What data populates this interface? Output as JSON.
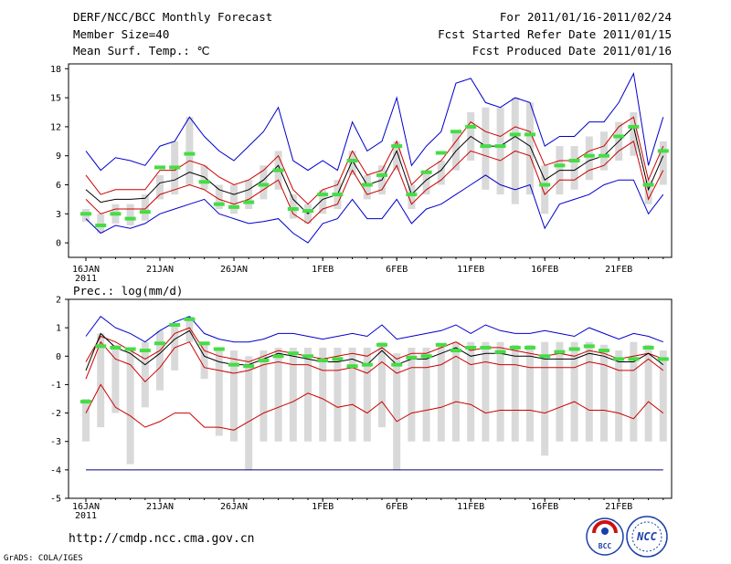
{
  "header": {
    "title": "DERF/NCC/BCC Monthly Forecast",
    "member_size": "Member Size=40",
    "variable": "Mean Surf. Temp.: ℃",
    "forecast_period": "For 2011/01/16-2011/02/24",
    "fcst_started": "Fcst Started Refer Date 2011/01/15",
    "fcst_produced": "Fcst Produced Date 2011/01/16"
  },
  "footer": {
    "url": "http://cmdp.ncc.cma.gov.cn",
    "grads_credit": "GrADS: COLA/IGES",
    "logo_bcc_text": "BCC",
    "logo_ncc_text": "NCC"
  },
  "x_ticks": [
    {
      "day": 0,
      "label": "16JAN",
      "sub": "2011"
    },
    {
      "day": 5,
      "label": "21JAN",
      "sub": ""
    },
    {
      "day": 10,
      "label": "26JAN",
      "sub": ""
    },
    {
      "day": 16,
      "label": "1FEB",
      "sub": ""
    },
    {
      "day": 21,
      "label": "6FEB",
      "sub": ""
    },
    {
      "day": 26,
      "label": "11FEB",
      "sub": ""
    },
    {
      "day": 31,
      "label": "16FEB",
      "sub": ""
    },
    {
      "day": 36,
      "label": "21FEB",
      "sub": ""
    }
  ],
  "chart_data": [
    {
      "type": "line",
      "title": "Mean Surf. Temp.: ℃",
      "xlabel": "",
      "ylabel": "",
      "x_days": [
        0,
        1,
        2,
        3,
        4,
        5,
        6,
        7,
        8,
        9,
        10,
        11,
        12,
        13,
        14,
        15,
        16,
        17,
        18,
        19,
        20,
        21,
        22,
        23,
        24,
        25,
        26,
        27,
        28,
        29,
        30,
        31,
        32,
        33,
        34,
        35,
        36,
        37,
        38,
        39
      ],
      "ylim": [
        -1.5,
        18.5
      ],
      "yticks": [
        0,
        3,
        6,
        9,
        12,
        15,
        18
      ],
      "series": [
        {
          "name": "ensemble-max",
          "color": "#0000cc",
          "values": [
            9.5,
            7.5,
            8.8,
            8.5,
            8.0,
            10.0,
            10.5,
            13.0,
            11.0,
            9.5,
            8.5,
            10.0,
            11.5,
            14.0,
            8.5,
            7.5,
            8.5,
            7.5,
            12.5,
            9.5,
            10.5,
            15.0,
            8.0,
            10.0,
            11.5,
            16.5,
            17.0,
            14.5,
            14.0,
            15.0,
            14.5,
            10.0,
            11.0,
            11.0,
            12.5,
            12.5,
            14.5,
            17.5,
            8.0,
            13.0
          ]
        },
        {
          "name": "upper",
          "color": "#cc0000",
          "values": [
            7.0,
            5.0,
            5.5,
            5.5,
            5.5,
            7.5,
            7.5,
            8.5,
            8.0,
            6.8,
            6.0,
            6.5,
            7.5,
            9.0,
            5.5,
            4.0,
            5.5,
            6.0,
            9.5,
            7.0,
            7.5,
            10.5,
            6.0,
            7.5,
            8.5,
            10.5,
            12.5,
            11.5,
            11.0,
            12.0,
            11.5,
            8.0,
            8.5,
            8.5,
            9.5,
            10.0,
            12.0,
            13.0,
            6.5,
            10.0
          ]
        },
        {
          "name": "mean",
          "color": "#000000",
          "values": [
            5.5,
            4.2,
            4.5,
            4.5,
            4.6,
            6.2,
            6.5,
            7.3,
            6.8,
            5.5,
            5.0,
            5.5,
            6.5,
            8.0,
            4.5,
            3.0,
            4.5,
            5.0,
            8.5,
            6.0,
            6.5,
            9.5,
            5.0,
            6.5,
            7.5,
            9.5,
            11.0,
            10.0,
            10.0,
            11.0,
            10.0,
            6.5,
            7.5,
            7.5,
            8.5,
            9.0,
            10.5,
            12.0,
            5.5,
            9.0
          ]
        },
        {
          "name": "lower",
          "color": "#cc0000",
          "values": [
            4.5,
            3.0,
            3.5,
            3.5,
            3.5,
            5.0,
            5.5,
            6.0,
            5.5,
            4.5,
            4.0,
            4.5,
            5.5,
            6.5,
            3.0,
            2.0,
            3.5,
            4.0,
            7.5,
            5.0,
            5.5,
            8.0,
            4.0,
            5.5,
            6.5,
            8.0,
            9.5,
            9.0,
            8.5,
            9.5,
            9.0,
            5.0,
            6.5,
            6.5,
            7.5,
            8.0,
            9.5,
            10.5,
            4.5,
            7.5
          ]
        },
        {
          "name": "ensemble-min",
          "color": "#0000cc",
          "values": [
            2.5,
            1.0,
            1.8,
            1.5,
            2.0,
            3.0,
            3.5,
            4.0,
            4.5,
            3.0,
            2.5,
            2.0,
            2.2,
            2.5,
            1.0,
            0.0,
            2.0,
            2.5,
            4.5,
            2.5,
            2.5,
            4.5,
            2.0,
            3.5,
            4.0,
            5.0,
            6.0,
            7.0,
            6.0,
            5.5,
            6.0,
            1.5,
            4.0,
            4.5,
            5.0,
            6.0,
            6.5,
            6.5,
            3.0,
            5.0
          ]
        }
      ],
      "boxes": {
        "color": "#d9d9d9",
        "low": [
          2.2,
          1.0,
          2.0,
          1.8,
          2.3,
          4.5,
          5.0,
          6.0,
          5.5,
          3.5,
          3.0,
          3.5,
          4.5,
          5.5,
          2.5,
          2.0,
          3.0,
          3.5,
          7.0,
          4.5,
          5.0,
          7.5,
          3.5,
          5.0,
          6.0,
          7.5,
          8.5,
          5.5,
          5.0,
          4.0,
          5.0,
          3.0,
          5.0,
          5.5,
          6.5,
          7.5,
          8.5,
          9.0,
          4.0,
          6.0
        ],
        "high": [
          3.5,
          3.0,
          4.0,
          4.0,
          5.0,
          7.0,
          10.5,
          13.0,
          8.0,
          6.0,
          6.0,
          6.5,
          8.0,
          9.5,
          5.0,
          4.0,
          5.5,
          6.5,
          9.5,
          7.0,
          8.0,
          10.5,
          6.0,
          7.5,
          8.5,
          11.5,
          13.5,
          14.0,
          14.0,
          15.0,
          14.5,
          8.0,
          10.0,
          10.0,
          11.0,
          11.5,
          12.5,
          13.5,
          6.5,
          10.5
        ]
      },
      "markers": {
        "name": "observed/model-control",
        "color": "#44dd44",
        "values": [
          3.0,
          1.8,
          3.0,
          2.5,
          3.2,
          7.8,
          7.8,
          9.2,
          6.3,
          4.0,
          3.7,
          4.2,
          6.0,
          7.5,
          3.5,
          3.3,
          5.0,
          5.0,
          8.5,
          6.0,
          7.0,
          10.0,
          5.0,
          7.3,
          9.3,
          11.5,
          12.0,
          10.0,
          10.0,
          11.2,
          11.2,
          6.0,
          8.0,
          8.5,
          9.0,
          9.0,
          11.0,
          12.0,
          6.0,
          9.5
        ]
      }
    },
    {
      "type": "line",
      "title": "Prec.: log(mm/d)",
      "xlabel": "",
      "ylabel": "",
      "x_days": [
        0,
        1,
        2,
        3,
        4,
        5,
        6,
        7,
        8,
        9,
        10,
        11,
        12,
        13,
        14,
        15,
        16,
        17,
        18,
        19,
        20,
        21,
        22,
        23,
        24,
        25,
        26,
        27,
        28,
        29,
        30,
        31,
        32,
        33,
        34,
        35,
        36,
        37,
        38,
        39
      ],
      "ylim": [
        -5,
        2
      ],
      "yticks": [
        -5,
        -4,
        -3,
        -2,
        -1,
        0,
        1,
        2
      ],
      "baseline": {
        "value": -4,
        "color": "#00007f"
      },
      "series": [
        {
          "name": "ensemble-max",
          "color": "#0000cc",
          "values": [
            0.7,
            1.4,
            1.0,
            0.8,
            0.5,
            0.9,
            1.2,
            1.4,
            0.8,
            0.6,
            0.5,
            0.5,
            0.6,
            0.8,
            0.8,
            0.7,
            0.6,
            0.7,
            0.8,
            0.7,
            1.1,
            0.6,
            0.7,
            0.8,
            0.9,
            1.1,
            0.8,
            1.1,
            0.9,
            0.8,
            0.8,
            0.9,
            0.8,
            0.7,
            1.0,
            0.8,
            0.6,
            0.8,
            0.7,
            0.5
          ]
        },
        {
          "name": "upper",
          "color": "#cc0000",
          "values": [
            -0.2,
            0.7,
            0.5,
            0.2,
            -0.1,
            0.2,
            0.8,
            1.0,
            0.2,
            0.0,
            -0.1,
            -0.2,
            0.0,
            0.2,
            0.1,
            0.0,
            -0.1,
            0.0,
            0.1,
            0.0,
            0.3,
            -0.1,
            0.1,
            0.1,
            0.3,
            0.5,
            0.2,
            0.3,
            0.3,
            0.2,
            0.1,
            0.0,
            0.1,
            0.0,
            0.2,
            0.1,
            -0.1,
            0.0,
            0.1,
            -0.1
          ]
        },
        {
          "name": "mean",
          "color": "#000000",
          "values": [
            -0.5,
            0.8,
            0.3,
            0.1,
            -0.3,
            0.1,
            0.6,
            0.9,
            0.0,
            -0.2,
            -0.3,
            -0.3,
            -0.1,
            0.1,
            0.0,
            -0.1,
            -0.2,
            -0.2,
            -0.1,
            -0.3,
            0.2,
            -0.3,
            -0.1,
            -0.1,
            0.1,
            0.3,
            0.0,
            0.1,
            0.1,
            0.0,
            0.0,
            -0.1,
            -0.1,
            -0.1,
            0.1,
            0.0,
            -0.2,
            -0.2,
            0.1,
            -0.3
          ]
        },
        {
          "name": "lower",
          "color": "#cc0000",
          "values": [
            -0.8,
            0.5,
            -0.1,
            -0.3,
            -0.9,
            -0.4,
            0.3,
            0.5,
            -0.4,
            -0.5,
            -0.6,
            -0.5,
            -0.3,
            -0.2,
            -0.3,
            -0.3,
            -0.5,
            -0.5,
            -0.4,
            -0.6,
            -0.2,
            -0.6,
            -0.4,
            -0.4,
            -0.3,
            0.0,
            -0.3,
            -0.2,
            -0.3,
            -0.3,
            -0.4,
            -0.4,
            -0.4,
            -0.4,
            -0.2,
            -0.3,
            -0.5,
            -0.5,
            -0.1,
            -0.5
          ]
        },
        {
          "name": "ensemble-min",
          "color": "#cc0000",
          "values": [
            -2.0,
            -1.0,
            -1.8,
            -2.1,
            -2.5,
            -2.3,
            -2.0,
            -2.0,
            -2.5,
            -2.5,
            -2.6,
            -2.3,
            -2.0,
            -1.8,
            -1.6,
            -1.3,
            -1.5,
            -1.8,
            -1.7,
            -2.0,
            -1.6,
            -2.3,
            -2.0,
            -1.9,
            -1.8,
            -1.6,
            -1.7,
            -2.0,
            -1.9,
            -1.9,
            -1.9,
            -2.0,
            -1.8,
            -1.6,
            -1.9,
            -1.9,
            -2.0,
            -2.2,
            -1.6,
            -2.0
          ]
        }
      ],
      "boxes": {
        "color": "#d9d9d9",
        "low": [
          -3.0,
          -2.5,
          -2.0,
          -3.8,
          -1.8,
          -1.2,
          -0.5,
          0.5,
          -0.8,
          -2.8,
          -3.0,
          -4.0,
          -3.0,
          -3.0,
          -3.0,
          -3.0,
          -3.0,
          -3.0,
          -3.0,
          -3.0,
          -2.5,
          -4.0,
          -3.0,
          -3.0,
          -3.0,
          -3.0,
          -3.0,
          -3.0,
          -3.0,
          -3.0,
          -3.0,
          -3.5,
          -3.0,
          -3.0,
          -3.0,
          -3.0,
          -3.0,
          -3.0,
          -3.0,
          -3.0
        ],
        "high": [
          -1.5,
          0.8,
          0.4,
          0.2,
          0.5,
          0.9,
          1.1,
          1.4,
          0.5,
          0.2,
          0.2,
          0.0,
          0.2,
          0.3,
          0.3,
          0.3,
          0.3,
          0.3,
          0.3,
          0.3,
          0.5,
          0.1,
          0.3,
          0.3,
          0.4,
          0.5,
          0.5,
          0.5,
          0.5,
          0.4,
          0.4,
          0.5,
          0.5,
          0.5,
          0.5,
          0.4,
          0.2,
          0.5,
          0.4,
          0.2
        ]
      },
      "markers": {
        "name": "observed/model-control",
        "color": "#44dd44",
        "values": [
          -1.6,
          0.35,
          0.3,
          0.25,
          0.2,
          0.45,
          1.1,
          1.3,
          0.45,
          0.25,
          -0.3,
          -0.35,
          -0.15,
          0.0,
          0.1,
          0.0,
          -0.15,
          -0.1,
          -0.35,
          -0.3,
          0.4,
          -0.3,
          -0.05,
          0.0,
          0.4,
          0.2,
          0.3,
          0.3,
          0.15,
          0.3,
          0.3,
          0.0,
          0.15,
          0.25,
          0.35,
          0.2,
          -0.1,
          -0.1,
          0.3,
          -0.1
        ]
      }
    }
  ]
}
